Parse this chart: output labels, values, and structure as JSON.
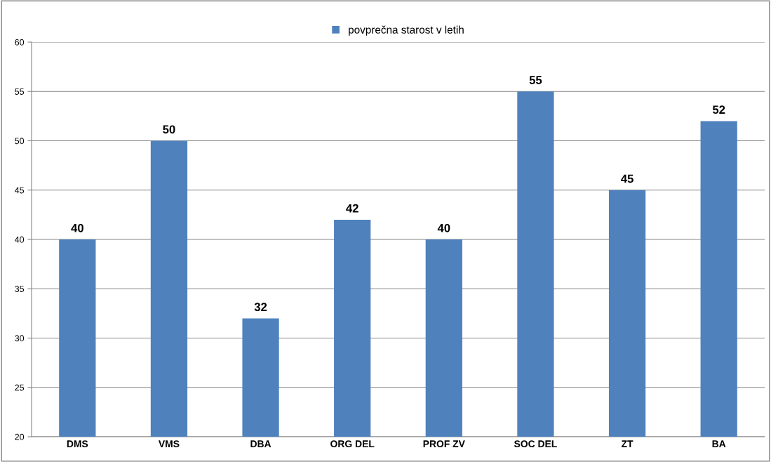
{
  "chart_data": {
    "type": "bar",
    "categories": [
      "DMS",
      "VMS",
      "DBA",
      "ORG DEL",
      "PROF ZV",
      "SOC DEL",
      "ZT",
      "BA"
    ],
    "series": [
      {
        "name": "povprečna starost v letih",
        "color": "#4f81bd",
        "values": [
          40,
          50,
          32,
          42,
          40,
          55,
          45,
          52
        ]
      }
    ],
    "ylim": [
      20,
      60
    ],
    "yticks": [
      20,
      25,
      30,
      35,
      40,
      45,
      50,
      55,
      60
    ],
    "grid": "y",
    "legend": "top",
    "data_labels": true
  }
}
